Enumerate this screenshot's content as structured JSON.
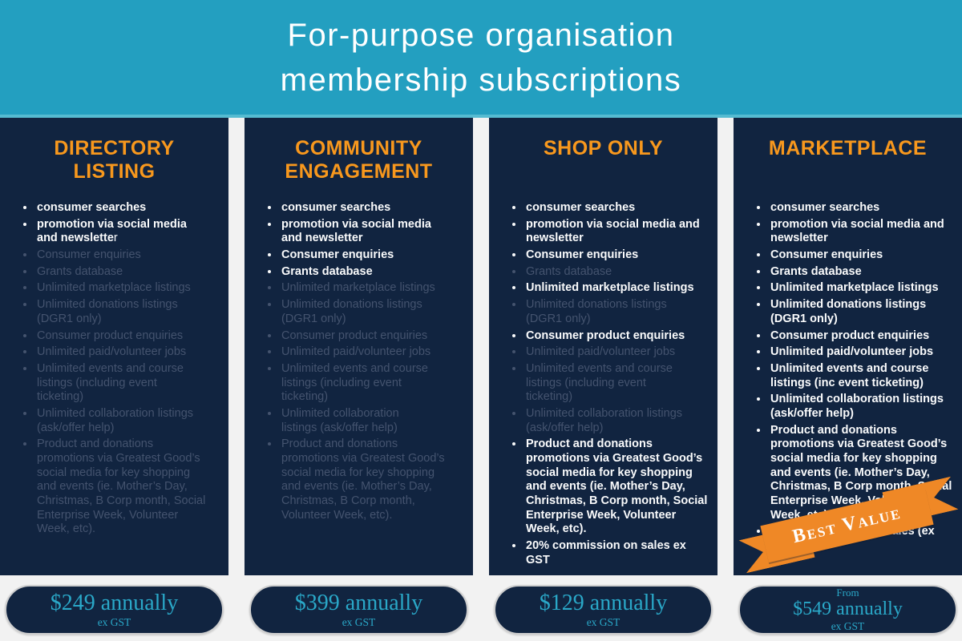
{
  "header": {
    "line1": "For-purpose organisation",
    "line2": "membership subscriptions"
  },
  "colors": {
    "banner_teal": "#239FC0",
    "card_navy": "#112440",
    "heading_orange": "#F8981D",
    "ribbon_orange": "#EF8826",
    "price_teal": "#2AA8C8",
    "excluded_text": "#44536E",
    "page_background": "#F2F2F2"
  },
  "plans": [
    {
      "name": "DIRECTORY\nLISTING",
      "features": [
        {
          "text": "consumer searches",
          "included": true
        },
        {
          "text": "promotion via social media\nand newslette",
          "tail": "r",
          "included": true
        },
        {
          "text": "Consumer enquiries",
          "included": false
        },
        {
          "text": "Grants database",
          "included": false
        },
        {
          "text": "Unlimited marketplace listings",
          "included": false
        },
        {
          "text": "Unlimited donations listings\n(DGR1 only)",
          "included": false
        },
        {
          "text": "Consumer product enquiries",
          "included": false
        },
        {
          "text": "Unlimited paid/volunteer jobs",
          "included": false
        },
        {
          "text": "Unlimited events and course\nlistings (including event\nticketing)",
          "included": false
        },
        {
          "text": "Unlimited collaboration listings\n(ask/offer help)",
          "included": false
        },
        {
          "text": "Product and donations\npromotions via Greatest Good’s\nsocial media for key shopping\nand events (ie. Mother’s Day,\nChristmas, B Corp month, Social\nEnterprise Week, Volunteer\nWeek, etc).",
          "included": false
        }
      ],
      "price": {
        "prefix": "",
        "amount": "$249 annually",
        "note": "ex GST"
      }
    },
    {
      "name": "COMMUNITY\nENGAGEMENT",
      "features": [
        {
          "text": "consumer searches",
          "included": true
        },
        {
          "text": "promotion via social media\nand newsletter",
          "included": true
        },
        {
          "text": "Consumer enquiries",
          "included": true
        },
        {
          "text": "Grants database",
          "included": true
        },
        {
          "text": "Unlimited marketplace listings",
          "included": false
        },
        {
          "text": "Unlimited donations listings\n(DGR1 only)",
          "included": false
        },
        {
          "text": "Consumer product enquiries",
          "included": false
        },
        {
          "text": "Unlimited paid/volunteer jobs",
          "included": false
        },
        {
          "text": "Unlimited events and course\nlistings (including event\nticketing)",
          "included": false
        },
        {
          "text": "Unlimited collaboration\nlistings (ask/offer help)",
          "included": false
        },
        {
          "text": "Product and donations\npromotions via Greatest Good’s\nsocial media for key shopping\nand events (ie. Mother’s Day,\nChristmas, B Corp month,\nVolunteer Week, etc).",
          "included": false
        }
      ],
      "price": {
        "prefix": "",
        "amount": "$399 annually",
        "note": "ex GST"
      }
    },
    {
      "name": "SHOP ONLY",
      "features": [
        {
          "text": "consumer searches",
          "included": true
        },
        {
          "text": "promotion via social media and\nnewsletter",
          "included": true
        },
        {
          "text": "Consumer enquiries",
          "included": true
        },
        {
          "text": "Grants database",
          "included": false
        },
        {
          "text": "Unlimited marketplace listings",
          "included": true
        },
        {
          "text": "Unlimited donations listings\n(DGR1 only)",
          "included": false
        },
        {
          "text": "Consumer product enquiries",
          "included": true
        },
        {
          "text": "Unlimited paid/volunteer jobs",
          "included": false
        },
        {
          "text": "Unlimited events and course\nlistings (including event\nticketing)",
          "included": false
        },
        {
          "text": "Unlimited collaboration listings\n(ask/offer help)",
          "included": false
        },
        {
          "text": "Product and donations\npromotions via Greatest Good’s\nsocial media for key shopping\nand events (ie. Mother’s Day,\nChristmas, B Corp month, Social\nEnterprise Week, Volunteer\nWeek, etc).",
          "included": true
        },
        {
          "text": "20% commission on sales ex GST",
          "included": true
        }
      ],
      "price": {
        "prefix": "",
        "amount": "$129 annually",
        "note": "ex GST"
      }
    },
    {
      "name": "MARKETPLACE",
      "badge": "Best Value",
      "features": [
        {
          "text": "consumer searches",
          "included": true
        },
        {
          "text": "promotion via social media and\nnewsletter",
          "included": true
        },
        {
          "text": "Consumer enquiries",
          "included": true
        },
        {
          "text": "Grants database",
          "included": true
        },
        {
          "text": "Unlimited marketplace listings",
          "included": true
        },
        {
          "text": "Unlimited donations listings\n(DGR1 only)",
          "included": true
        },
        {
          "text": "Consumer product enquiries",
          "included": true
        },
        {
          "text": "Unlimited paid/volunteer jobs",
          "included": true
        },
        {
          "text": "Unlimited events and course\nlistings (inc event ticketing)",
          "included": true
        },
        {
          "text": "Unlimited collaboration listings\n(ask/offer help)",
          "included": true
        },
        {
          "text": "Product and donations\npromotions via Greatest Good’s\nsocial media for key shopping\nand events (ie. Mother’s Day,\nChristmas, B Corp month, Social\nEnterprise Week,  Volunteer\nWeek, etc).",
          "included": true
        },
        {
          "text": "10% commission on sales (ex GST)",
          "included": true
        }
      ],
      "price": {
        "prefix": "From",
        "amount": "$549 annually",
        "note": "ex GST"
      }
    }
  ]
}
